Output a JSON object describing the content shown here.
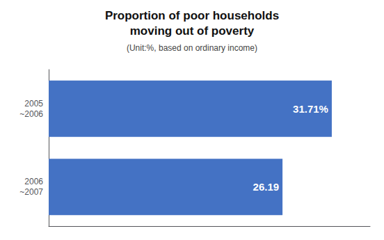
{
  "chart_data": {
    "type": "bar",
    "orientation": "horizontal",
    "title": "Proportion of poor households\nmoving out of poverty",
    "subtitle": "(Unit:%, based on ordinary income)",
    "categories": [
      "2005\n~2006",
      "2006\n~2007"
    ],
    "values": [
      31.71,
      26.19
    ],
    "value_labels": [
      "31.71%",
      "26.19"
    ],
    "data_labels": true,
    "color": "#4472C4",
    "xlim": [
      0,
      36
    ],
    "tick_labels": "y",
    "grid": false
  }
}
